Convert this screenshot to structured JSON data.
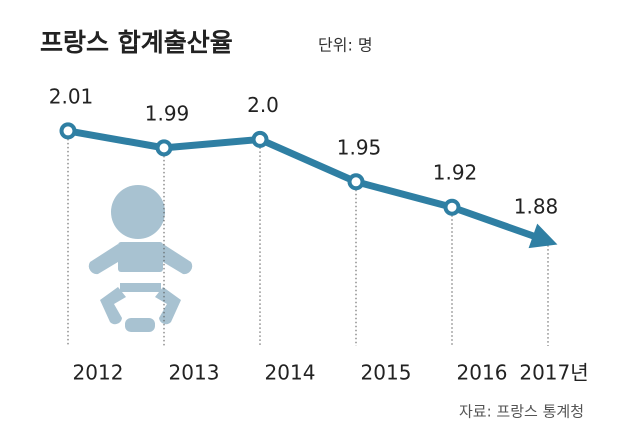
{
  "chart_data": {
    "type": "line",
    "title": "프랑스 합계출산율",
    "subtitle": "단위: 명",
    "source": "자료: 프랑스 통계청",
    "categories": [
      "2012",
      "2013",
      "2014",
      "2015",
      "2016",
      "2017년"
    ],
    "values": [
      2.01,
      1.99,
      2.0,
      1.95,
      1.92,
      1.88
    ],
    "value_labels": [
      "2.01",
      "1.99",
      "2.0",
      "1.95",
      "1.92",
      "1.88"
    ],
    "color": "#2f7fa3",
    "ylim": [
      1.8,
      2.05
    ]
  }
}
